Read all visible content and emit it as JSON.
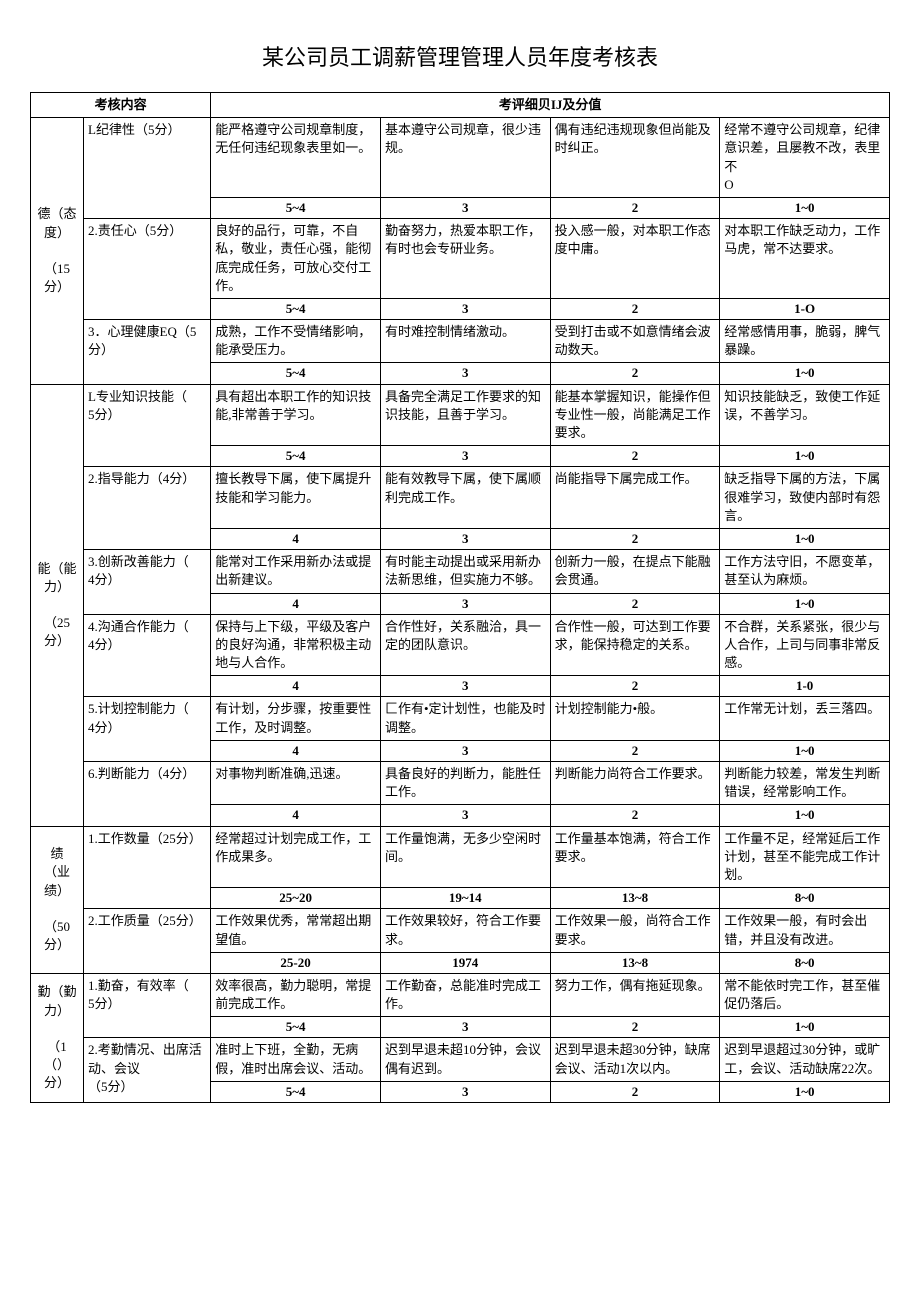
{
  "title": "某公司员工调薪管理管理人员年度考核表",
  "headers": {
    "content": "考核内容",
    "detail": "考评细贝IJ及分值"
  },
  "sections": [
    {
      "category": "德（态度）\n\n（15\n分）",
      "rows": [
        {
          "item": "L纪律性（5分）",
          "criteria": [
            "能严格遵守公司规章制度，无任何违纪现象表里如一。",
            "基本遵守公司规章，很少违规。",
            "偶有违纪违规现象但尚能及时纠正。",
            "经常不遵守公司规章，纪律意识差，且屡教不改，表里不\nO"
          ],
          "scores": [
            "5~4",
            "3",
            "2",
            "1~0"
          ]
        },
        {
          "item": "2.责任心（5分）",
          "criteria": [
            "良好的品行，可靠，不自私，敬业，责任心强，能彻底完成任务，可放心交付工作。",
            "勤奋努力，热爱本职工作，有时也会专研业务。",
            "投入感一般，对本职工作态度中庸。",
            "对本职工作缺乏动力，工作马虎，常不达要求。"
          ],
          "scores": [
            "5~4",
            "3",
            "2",
            "1-O"
          ]
        },
        {
          "item": "3．心理健康EQ（5\n分）",
          "criteria": [
            "成熟，工作不受情绪影响，能承受压力。",
            "有时难控制情绪激动。",
            "受到打击或不如意情绪会波动数天。",
            "经常感情用事，脆弱，脾气暴躁。"
          ],
          "scores": [
            "5~4",
            "3",
            "2",
            "1~0"
          ]
        }
      ]
    },
    {
      "category": "能（能力）\n\n（25\n分）",
      "rows": [
        {
          "item": "L专业知识技能（\n5分）",
          "criteria": [
            "具有超出本职工作的知识技能,非常善于学习。",
            "具备完全满足工作要求的知识技能，且善于学习。",
            "能基本掌握知识，能操作但专业性一般，尚能满足工作要求。",
            "知识技能缺乏，致使工作延误，不善学习。"
          ],
          "scores": [
            "5~4",
            "3",
            "2",
            "1~0"
          ]
        },
        {
          "item": "2.指导能力（4分）",
          "criteria": [
            "擅长教导下属，使下属提升技能和学习能力。",
            "能有效教导下属，使下属顺利完成工作。",
            "尚能指导下属完成工作。",
            "缺乏指导下属的方法，下属很难学习，致使内部时有怨言。"
          ],
          "scores": [
            "4",
            "3",
            "2",
            "1~0"
          ]
        },
        {
          "item": "3.创新改善能力（\n4分）",
          "criteria": [
            "能常对工作采用新办法或提出新建议。",
            "有时能主动提出或采用新办法新思维，但实施力不够。",
            "创新力一般，在提点下能融会贯通。",
            "工作方法守旧，不愿变革，甚至认为麻烦。"
          ],
          "scores": [
            "4",
            "3",
            "2",
            "1~0"
          ]
        },
        {
          "item": "4.沟通合作能力（\n4分）",
          "criteria": [
            "保持与上下级，平级及客户的良好沟通，非常积极主动地与人合作。",
            "合作性好，关系融洽，具一定的团队意识。",
            "合作性一般，可达到工作要求，能保持稳定的关系。",
            "不合群，关系紧张，很少与人合作，上司与同事非常反感。"
          ],
          "scores": [
            "4",
            "3",
            "2",
            "1-0"
          ]
        },
        {
          "item": "5.计划控制能力（\n4分）",
          "criteria": [
            "有计划，分步骤，按重要性工作，及时调整。",
            "匚作有•定计划性，也能及时调整。",
            "计划控制能力•般。",
            "工作常无计划，丢三落四。"
          ],
          "scores": [
            "4",
            "3",
            "2",
            "1~0"
          ]
        },
        {
          "item": "6.判断能力（4分）",
          "criteria": [
            "对事物判断准确,迅速。",
            "具备良好的判断力，能胜任工作。",
            "判断能力尚符合工作要求。",
            "判断能力较差，常发生判断错误，经常影响工作。"
          ],
          "scores": [
            "4",
            "3",
            "2",
            "1~0"
          ]
        }
      ]
    },
    {
      "category": "绩\n（业\n绩）\n\n（50\n分）",
      "rows": [
        {
          "item": "1.工作数量（25分）",
          "criteria": [
            "经常超过计划完成工作，工作成果多。",
            "工作量饱满，无多少空闲时间。",
            "工作量基本饱满，符合工作要求。",
            "工作量不足，经常延后工作计划，甚至不能完成工作计划。"
          ],
          "scores": [
            "25~20",
            "19~14",
            "13~8",
            "8~0"
          ]
        },
        {
          "item": "2.工作质量（25分）",
          "criteria": [
            "工作效果优秀，常常超出期望值。",
            "工作效果较好，符合工作要求。",
            "工作效果一般，尚符合工作要求。",
            "工作效果一般，有时会出错，并且没有改进。"
          ],
          "scores": [
            "25-20",
            "1974",
            "13~8",
            "8~0"
          ]
        }
      ]
    },
    {
      "category": "勤（勤力）\n\n（1（）\n分）",
      "rows": [
        {
          "item": "1.勤奋，有效率（\n5分）",
          "criteria": [
            "效率很高，勤力聪明，常提前完成工作。",
            "工作勤奋，总能准时完成工作。",
            "努力工作，偶有拖延现象。",
            "常不能依时完工作，甚至催促仍落后。"
          ],
          "scores": [
            "5~4",
            "3",
            "2",
            "1~0"
          ]
        },
        {
          "item": "2.考勤情况、出席活动、会议\n（5分）",
          "criteria": [
            "准时上下班，全勤，无病假，准时出席会议、活动。",
            "迟到早退未超10分钟，会议偶有迟到。",
            "迟到早退未超30分钟，缺席会议、活动1次以内。",
            "迟到早退超过30分钟，或旷工，会议、活动缺席22次。"
          ],
          "scores": [
            "5~4",
            "3",
            "2",
            "1~0"
          ]
        }
      ]
    }
  ]
}
